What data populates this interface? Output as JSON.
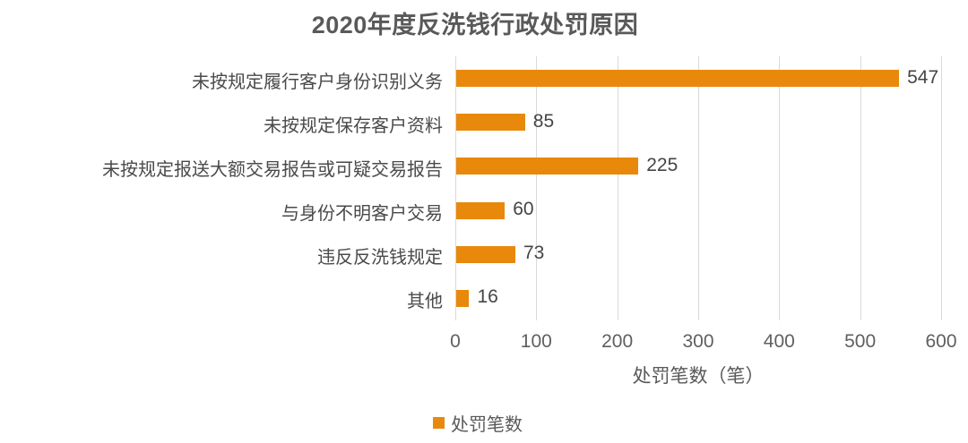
{
  "title": "2020年度反洗钱行政处罚原因",
  "colors": {
    "bar": "#E8890C",
    "grid": "#D9D9D9",
    "title_text": "#595959",
    "label_text": "#4A4A4A",
    "tick_text": "#5F5F5F"
  },
  "chart_data": {
    "type": "bar",
    "orientation": "horizontal",
    "title": "2020年度反洗钱行政处罚原因",
    "categories": [
      "未按规定履行客户身份识别义务",
      "未按规定保存客户资料",
      "未按规定报送大额交易报告或可疑交易报告",
      "与身份不明客户交易",
      "违反反洗钱规定",
      "其他"
    ],
    "values": [
      547,
      85,
      225,
      60,
      73,
      16
    ],
    "series_name": "处罚笔数",
    "xlabel": "处罚笔数（笔）",
    "ylabel": "",
    "xlim": [
      0,
      600
    ],
    "xticks": [
      0,
      100,
      200,
      300,
      400,
      500,
      600
    ],
    "grid": true,
    "data_labels": true,
    "legend_position": "bottom"
  },
  "legend": {
    "label": "处罚笔数"
  }
}
